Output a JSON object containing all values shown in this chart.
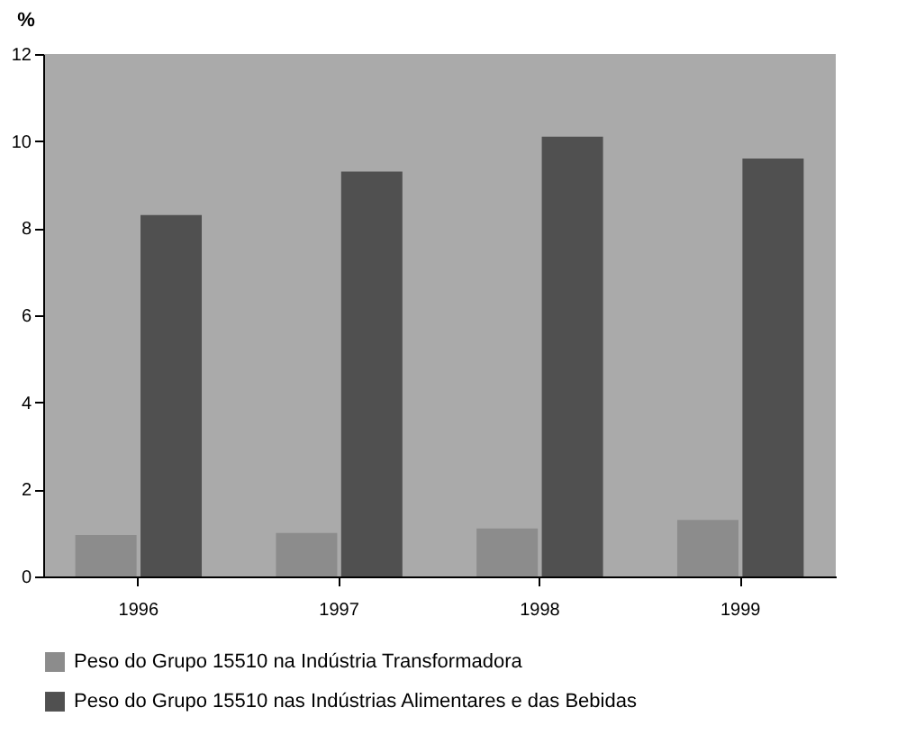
{
  "chart_data": {
    "type": "bar",
    "ylabel": "%",
    "categories": [
      "1996",
      "1997",
      "1998",
      "1999"
    ],
    "series": [
      {
        "name": "Peso do Grupo 15510 na Indústria Transformadora",
        "color": "#8c8c8c",
        "values": [
          0.95,
          1.0,
          1.1,
          1.3
        ]
      },
      {
        "name": "Peso do Grupo 15510 nas Indústrias Alimentares e das Bebidas",
        "color": "#505050",
        "values": [
          8.3,
          9.3,
          10.1,
          9.6
        ]
      }
    ],
    "ylim": [
      0,
      12
    ],
    "yticks": [
      0,
      2,
      4,
      6,
      8,
      10,
      12
    ],
    "grid": false,
    "legend": "bottom"
  }
}
